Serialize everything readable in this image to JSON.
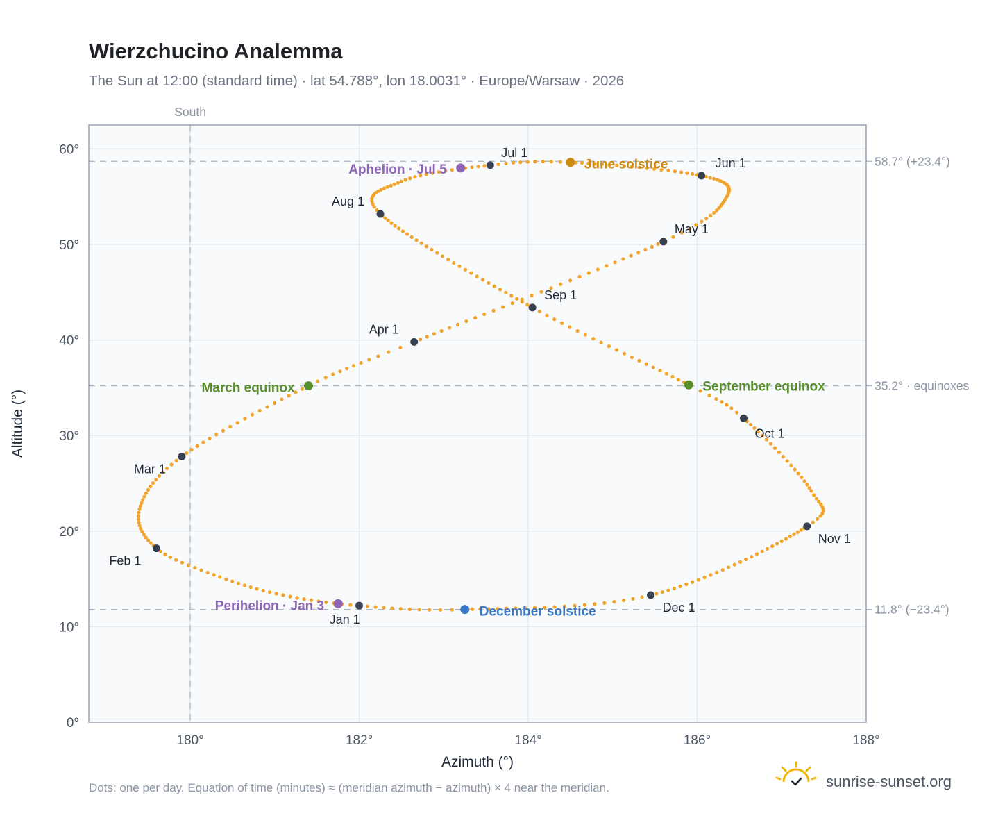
{
  "header": {
    "title": "Wierzchucino Analemma",
    "subtitle": "The Sun at 12:00 (standard time) · lat 54.788°, lon 18.0031° · Europe/Warsaw · 2026"
  },
  "colors": {
    "path": "#f2a32a",
    "month_marker": "#374151",
    "solstice_june": "#cc8a12",
    "solstice_december": "#3b78c3",
    "equinox": "#5a8f2e",
    "apsis": "#8e65b4"
  },
  "chart_data": {
    "type": "scatter",
    "title": "Wierzchucino Analemma",
    "xlabel": "Azimuth (°)",
    "ylabel": "Altitude (°)",
    "xlim": [
      178.8,
      188
    ],
    "ylim": [
      0,
      62.5
    ],
    "x_ticks": [
      180,
      182,
      184,
      186,
      188
    ],
    "y_ticks": [
      0,
      10,
      20,
      30,
      40,
      50,
      60
    ],
    "x_tick_labels": [
      "180°",
      "182°",
      "184°",
      "186°",
      "188°"
    ],
    "y_tick_labels": [
      "0°",
      "10°",
      "20°",
      "30°",
      "40°",
      "50°",
      "60°"
    ],
    "grid": true,
    "meridian": {
      "azimuth": 180,
      "label": "South"
    },
    "reference_lines": [
      {
        "altitude": 58.7,
        "label": "58.7° (+23.4°)"
      },
      {
        "altitude": 35.2,
        "label": "35.2° · equinoxes"
      },
      {
        "altitude": 11.8,
        "label": "11.8° (−23.4°)"
      }
    ],
    "month_markers": [
      {
        "label": "Jan 1",
        "azimuth": 182.0,
        "altitude": 12.2
      },
      {
        "label": "Feb 1",
        "azimuth": 179.6,
        "altitude": 18.2
      },
      {
        "label": "Mar 1",
        "azimuth": 179.9,
        "altitude": 27.8
      },
      {
        "label": "Apr 1",
        "azimuth": 182.65,
        "altitude": 39.8
      },
      {
        "label": "May 1",
        "azimuth": 185.6,
        "altitude": 50.3
      },
      {
        "label": "Jun 1",
        "azimuth": 186.05,
        "altitude": 57.2
      },
      {
        "label": "Jul 1",
        "azimuth": 183.55,
        "altitude": 58.3
      },
      {
        "label": "Aug 1",
        "azimuth": 182.25,
        "altitude": 53.2
      },
      {
        "label": "Sep 1",
        "azimuth": 184.05,
        "altitude": 43.4
      },
      {
        "label": "Oct 1",
        "azimuth": 186.55,
        "altitude": 31.8
      },
      {
        "label": "Nov 1",
        "azimuth": 187.3,
        "altitude": 20.5
      },
      {
        "label": "Dec 1",
        "azimuth": 185.45,
        "altitude": 13.3
      }
    ],
    "events": [
      {
        "label": "June solstice",
        "azimuth": 184.5,
        "altitude": 58.6,
        "kind": "solstice_june"
      },
      {
        "label": "December solstice",
        "azimuth": 183.25,
        "altitude": 11.8,
        "kind": "solstice_december"
      },
      {
        "label": "March equinox",
        "azimuth": 181.4,
        "altitude": 35.2,
        "kind": "equinox"
      },
      {
        "label": "September equinox",
        "azimuth": 185.9,
        "altitude": 35.3,
        "kind": "equinox"
      },
      {
        "label": "Aphelion · Jul 5",
        "azimuth": 183.2,
        "altitude": 58.0,
        "kind": "apsis"
      },
      {
        "label": "Perihelion · Jan 3",
        "azimuth": 181.75,
        "altitude": 12.4,
        "kind": "apsis"
      }
    ],
    "path_anchors": [
      {
        "day": 0,
        "azimuth": 182.0,
        "altitude": 12.2
      },
      {
        "day": 10,
        "azimuth": 181.1,
        "altitude": 13.3
      },
      {
        "day": 20,
        "azimuth": 180.35,
        "altitude": 15.2
      },
      {
        "day": 31,
        "azimuth": 179.6,
        "altitude": 18.2
      },
      {
        "day": 44,
        "azimuth": 179.4,
        "altitude": 22.3
      },
      {
        "day": 59,
        "azimuth": 179.9,
        "altitude": 27.8
      },
      {
        "day": 78,
        "azimuth": 181.4,
        "altitude": 35.2
      },
      {
        "day": 90,
        "azimuth": 182.65,
        "altitude": 39.8
      },
      {
        "day": 120,
        "azimuth": 185.6,
        "altitude": 50.3
      },
      {
        "day": 135,
        "azimuth": 186.35,
        "altitude": 55.0
      },
      {
        "day": 151,
        "azimuth": 186.05,
        "altitude": 57.2
      },
      {
        "day": 171,
        "azimuth": 184.5,
        "altitude": 58.6
      },
      {
        "day": 181,
        "azimuth": 183.55,
        "altitude": 58.3
      },
      {
        "day": 196,
        "azimuth": 182.5,
        "altitude": 56.6
      },
      {
        "day": 212,
        "azimuth": 182.25,
        "altitude": 53.2
      },
      {
        "day": 243,
        "azimuth": 184.05,
        "altitude": 43.4
      },
      {
        "day": 265,
        "azimuth": 185.9,
        "altitude": 35.3
      },
      {
        "day": 273,
        "azimuth": 186.55,
        "altitude": 31.8
      },
      {
        "day": 292,
        "azimuth": 187.35,
        "altitude": 24.2
      },
      {
        "day": 304,
        "azimuth": 187.3,
        "altitude": 20.5
      },
      {
        "day": 334,
        "azimuth": 185.45,
        "altitude": 13.3
      },
      {
        "day": 354,
        "azimuth": 183.25,
        "altitude": 11.8
      },
      {
        "day": 365,
        "azimuth": 182.0,
        "altitude": 12.2
      }
    ]
  },
  "footer": {
    "note": "Dots: one per day. Equation of time (minutes) ≈ (meridian azimuth − azimuth) × 4 near the meridian.",
    "brand": "sunrise-sunset.org",
    "brand_icon": "sun-check-icon"
  }
}
